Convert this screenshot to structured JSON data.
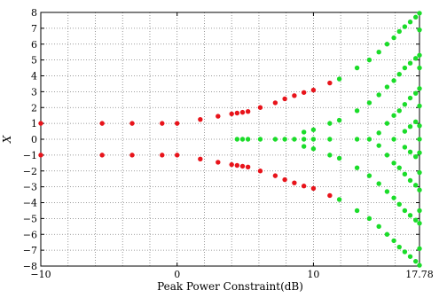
{
  "chart_data": {
    "type": "scatter",
    "title": "",
    "xlabel": "Peak Power Constraint(dB)",
    "ylabel": "X",
    "xlim": [
      -10,
      17.78
    ],
    "ylim": [
      -8,
      8
    ],
    "xticks": [
      -10,
      0,
      10,
      17.78
    ],
    "xtick_labels": [
      "−10",
      "0",
      "10",
      "17.78"
    ],
    "xgrid": [
      -10,
      -8,
      -6,
      -4,
      -2,
      0,
      2,
      4,
      6,
      8,
      10,
      12,
      14,
      16,
      17.78
    ],
    "yticks": [
      -8,
      -7,
      -6,
      -5,
      -4,
      -3,
      -2,
      -1,
      0,
      1,
      2,
      3,
      4,
      5,
      6,
      7,
      8
    ],
    "grid": true,
    "series": [
      {
        "color": "#e8141b",
        "points": [
          [
            -10,
            1
          ],
          [
            -10,
            -1
          ],
          [
            -5.5,
            1
          ],
          [
            -5.5,
            -1
          ],
          [
            -3.3,
            1
          ],
          [
            -3.3,
            -1
          ],
          [
            -1.1,
            1
          ],
          [
            -1.1,
            -1
          ],
          [
            0,
            1
          ],
          [
            0,
            -1
          ],
          [
            1.7,
            1.25
          ],
          [
            1.7,
            -1.25
          ],
          [
            3,
            1.45
          ],
          [
            3,
            -1.45
          ],
          [
            4,
            1.6
          ],
          [
            4,
            -1.6
          ],
          [
            4.4,
            1.65
          ],
          [
            4.4,
            -1.65
          ],
          [
            4.8,
            1.7
          ],
          [
            4.8,
            -1.7
          ],
          [
            5.2,
            1.75
          ],
          [
            5.2,
            -1.75
          ],
          [
            6.1,
            2
          ],
          [
            6.1,
            -2
          ],
          [
            7.2,
            2.3
          ],
          [
            7.2,
            -2.3
          ],
          [
            7.9,
            2.55
          ],
          [
            7.9,
            -2.55
          ],
          [
            8.6,
            2.75
          ],
          [
            8.6,
            -2.75
          ],
          [
            9.3,
            2.95
          ],
          [
            9.3,
            -2.95
          ],
          [
            10,
            3.1
          ],
          [
            10,
            -3.1
          ],
          [
            11.2,
            3.55
          ],
          [
            11.2,
            -3.55
          ]
        ]
      },
      {
        "color": "#1bdc2a",
        "points": [
          [
            4.4,
            0
          ],
          [
            4.8,
            0
          ],
          [
            5.2,
            0
          ],
          [
            6.1,
            0
          ],
          [
            7.2,
            0
          ],
          [
            7.9,
            0
          ],
          [
            8.6,
            0
          ],
          [
            9.3,
            0
          ],
          [
            9.3,
            0.45
          ],
          [
            9.3,
            -0.45
          ],
          [
            10,
            0.6
          ],
          [
            10,
            -0.6
          ],
          [
            10,
            0
          ],
          [
            11.2,
            1
          ],
          [
            11.2,
            -1
          ],
          [
            11.2,
            0
          ],
          [
            11.9,
            3.8
          ],
          [
            11.9,
            1.2
          ],
          [
            11.9,
            -1.2
          ],
          [
            11.9,
            -3.8
          ],
          [
            13.2,
            4.5
          ],
          [
            13.2,
            1.8
          ],
          [
            13.2,
            0
          ],
          [
            13.2,
            -1.8
          ],
          [
            13.2,
            -4.5
          ],
          [
            14.1,
            5.0
          ],
          [
            14.1,
            2.3
          ],
          [
            14.1,
            0
          ],
          [
            14.1,
            -2.3
          ],
          [
            14.1,
            -5.0
          ],
          [
            14.8,
            5.5
          ],
          [
            14.8,
            2.8
          ],
          [
            14.8,
            0.4
          ],
          [
            14.8,
            -0.4
          ],
          [
            14.8,
            -2.8
          ],
          [
            14.8,
            -5.5
          ],
          [
            15.4,
            6.0
          ],
          [
            15.4,
            3.3
          ],
          [
            15.4,
            1.0
          ],
          [
            15.4,
            -1.0
          ],
          [
            15.4,
            -3.3
          ],
          [
            15.4,
            -6.0
          ],
          [
            15.9,
            6.4
          ],
          [
            15.9,
            3.7
          ],
          [
            15.9,
            1.5
          ],
          [
            15.9,
            0
          ],
          [
            15.9,
            -1.5
          ],
          [
            15.9,
            -3.7
          ],
          [
            15.9,
            -6.4
          ],
          [
            16.3,
            6.8
          ],
          [
            16.3,
            4.1
          ],
          [
            16.3,
            1.8
          ],
          [
            16.3,
            -1.8
          ],
          [
            16.3,
            -4.1
          ],
          [
            16.3,
            -6.8
          ],
          [
            16.7,
            7.1
          ],
          [
            16.7,
            4.5
          ],
          [
            16.7,
            2.2
          ],
          [
            16.7,
            0.5
          ],
          [
            16.7,
            -0.5
          ],
          [
            16.7,
            -2.2
          ],
          [
            16.7,
            -4.5
          ],
          [
            16.7,
            -7.1
          ],
          [
            17.1,
            7.4
          ],
          [
            17.1,
            4.8
          ],
          [
            17.1,
            2.6
          ],
          [
            17.1,
            0.8
          ],
          [
            17.1,
            -0.8
          ],
          [
            17.1,
            -2.6
          ],
          [
            17.1,
            -4.8
          ],
          [
            17.1,
            -7.4
          ],
          [
            17.5,
            7.7
          ],
          [
            17.5,
            5.1
          ],
          [
            17.5,
            2.9
          ],
          [
            17.5,
            1.1
          ],
          [
            17.5,
            -1.1
          ],
          [
            17.5,
            -2.9
          ],
          [
            17.5,
            -5.1
          ],
          [
            17.5,
            -7.7
          ],
          [
            17.78,
            7.95
          ],
          [
            17.78,
            6.9
          ],
          [
            17.78,
            5.3
          ],
          [
            17.78,
            4.5
          ],
          [
            17.78,
            3.2
          ],
          [
            17.78,
            2.1
          ],
          [
            17.78,
            0.85
          ],
          [
            17.78,
            0
          ],
          [
            17.78,
            -0.85
          ],
          [
            17.78,
            -2.1
          ],
          [
            17.78,
            -3.2
          ],
          [
            17.78,
            -4.5
          ],
          [
            17.78,
            -5.3
          ],
          [
            17.78,
            -6.9
          ],
          [
            17.78,
            -7.95
          ]
        ]
      }
    ]
  }
}
